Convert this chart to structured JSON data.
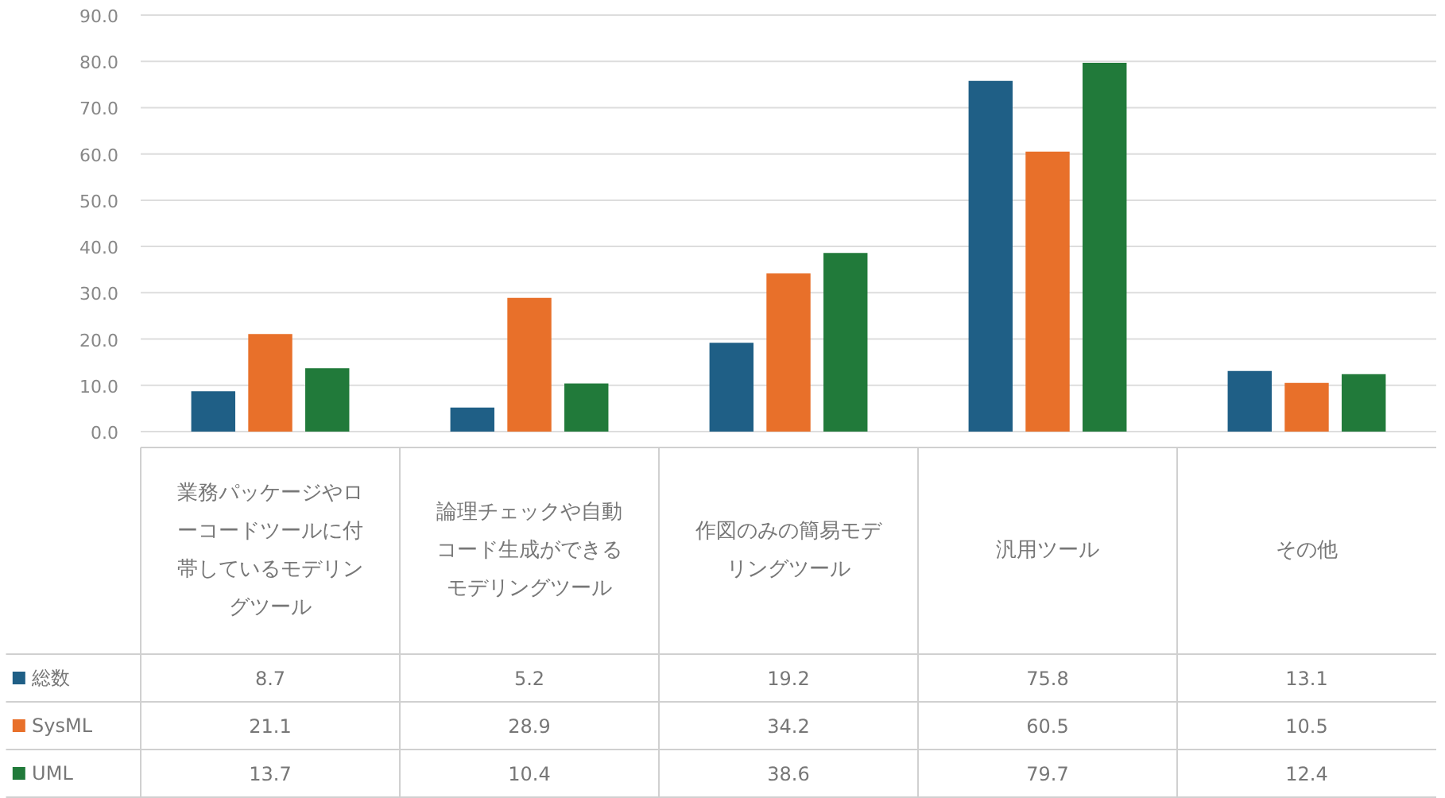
{
  "chart_data": {
    "type": "bar",
    "categories": [
      "業務パッケージやローコードツールに付帯しているモデリングツール",
      "論理チェックや自動コード生成ができるモデリングツール",
      "作図のみの簡易モデリングツール",
      "汎用ツール",
      "その他"
    ],
    "series": [
      {
        "name": "総数",
        "color": "#1f5f86",
        "values": [
          8.7,
          5.2,
          19.2,
          75.8,
          13.1
        ]
      },
      {
        "name": "SysML",
        "color": "#e8702a",
        "values": [
          21.1,
          28.9,
          34.2,
          60.5,
          10.5
        ]
      },
      {
        "name": "UML",
        "color": "#217a3a",
        "values": [
          13.7,
          10.4,
          38.6,
          79.7,
          12.4
        ]
      }
    ],
    "ylim": [
      0,
      90
    ],
    "yticks": [
      {
        "value": 0,
        "label": "0.0"
      },
      {
        "value": 10,
        "label": "10.0"
      },
      {
        "value": 20,
        "label": "20.0"
      },
      {
        "value": 30,
        "label": "30.0"
      },
      {
        "value": 40,
        "label": "40.0"
      },
      {
        "value": 50,
        "label": "50.0"
      },
      {
        "value": 60,
        "label": "60.0"
      },
      {
        "value": 70,
        "label": "70.0"
      },
      {
        "value": 80,
        "label": "80.0"
      },
      {
        "value": 90,
        "label": "90.0"
      }
    ],
    "grid": "y",
    "legend": "bottom",
    "data_labels": true
  }
}
